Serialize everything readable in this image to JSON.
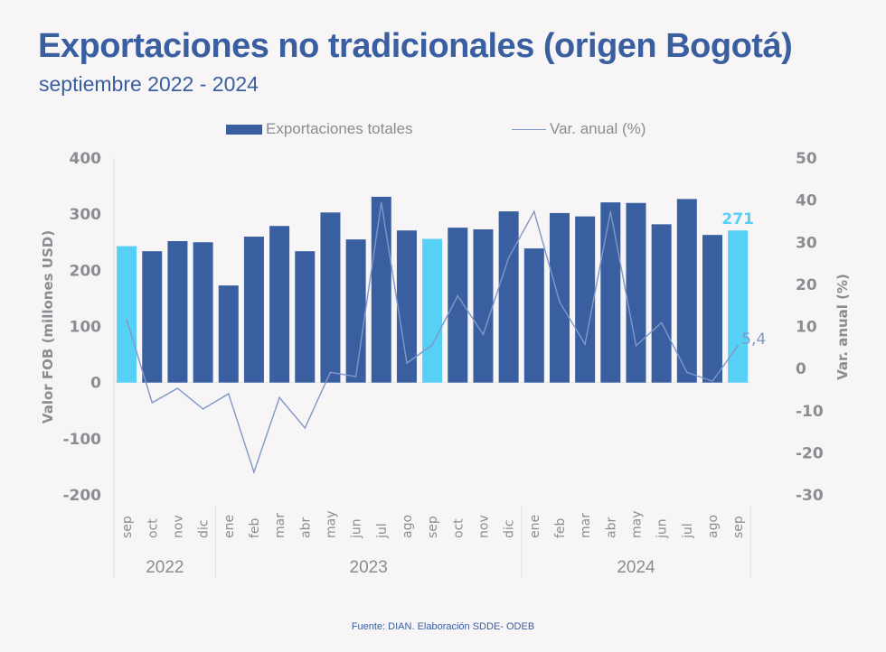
{
  "header": {
    "title": "Exportaciones no tradicionales (origen Bogotá)",
    "subtitle": "septiembre 2022 - 2024"
  },
  "legend": {
    "bars_label": "Exportaciones totales",
    "line_label": "Var. anual (%)"
  },
  "source": "Fuente: DIAN. Elaboración SDDE- ODEB",
  "colors": {
    "bar": "#3a5fa0",
    "highlight": "#56d0f5",
    "line": "#7f98c8",
    "text": "#8a8d92",
    "title": "#3a5fa0"
  },
  "chart_data": {
    "type": "bar",
    "title": "Exportaciones no tradicionales (origen Bogotá)",
    "subtitle": "septiembre 2022 - 2024",
    "ylabel": "Valor FOB (millones USD)",
    "y2label": "Var. anual (%)",
    "ylim": [
      -200,
      400
    ],
    "y2lim": [
      -30,
      50
    ],
    "yticks": [
      "400",
      "300",
      "200",
      "100",
      "0",
      "-100",
      "-200"
    ],
    "y2ticks": [
      "50",
      "40",
      "30",
      "20",
      "10",
      "0",
      "-10",
      "-20",
      "-30"
    ],
    "categories": [
      "sep",
      "oct",
      "nov",
      "dic",
      "ene",
      "feb",
      "mar",
      "abr",
      "may",
      "jun",
      "jul",
      "ago",
      "sep",
      "oct",
      "nov",
      "dic",
      "ene",
      "feb",
      "mar",
      "abr",
      "may",
      "jun",
      "jul",
      "ago",
      "sep"
    ],
    "year_groups": [
      {
        "label": "2022",
        "count": 4
      },
      {
        "label": "2023",
        "count": 12
      },
      {
        "label": "2024",
        "count": 9
      }
    ],
    "highlight_indices": [
      0,
      12,
      24
    ],
    "series": [
      {
        "name": "Exportaciones totales",
        "type": "bar",
        "axis": "left",
        "values": [
          243,
          234,
          252,
          250,
          173,
          260,
          279,
          234,
          303,
          255,
          331,
          271,
          256,
          276,
          273,
          305,
          239,
          302,
          296,
          321,
          320,
          282,
          327,
          263,
          271
        ]
      },
      {
        "name": "Var. anual (%)",
        "type": "line",
        "axis": "right",
        "values": [
          11.6,
          -8.1,
          -4.7,
          -9.6,
          -6.0,
          -24.6,
          -6.9,
          -14.1,
          -0.9,
          -1.9,
          39.4,
          1.3,
          5.6,
          17.3,
          8.1,
          26.3,
          37.3,
          15.8,
          5.8,
          37.3,
          5.4,
          10.9,
          -0.9,
          -3.0,
          5.4
        ]
      }
    ],
    "annotations": {
      "last_bar_label": "271",
      "last_line_label": "5,4"
    },
    "legend_position": "top"
  }
}
